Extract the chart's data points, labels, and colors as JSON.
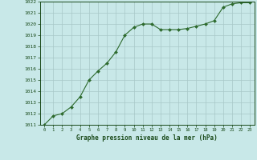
{
  "x": [
    0,
    1,
    2,
    3,
    4,
    5,
    6,
    7,
    8,
    9,
    10,
    11,
    12,
    13,
    14,
    15,
    16,
    17,
    18,
    19,
    20,
    21,
    22,
    23
  ],
  "y": [
    1011.0,
    1011.8,
    1012.0,
    1012.6,
    1013.5,
    1015.0,
    1015.8,
    1016.5,
    1017.5,
    1019.0,
    1019.7,
    1020.0,
    1020.0,
    1019.5,
    1019.5,
    1019.5,
    1019.6,
    1019.8,
    1020.0,
    1020.3,
    1021.5,
    1021.8,
    1021.9,
    1021.9
  ],
  "ylim": [
    1011,
    1022
  ],
  "yticks": [
    1011,
    1012,
    1013,
    1014,
    1015,
    1016,
    1017,
    1018,
    1019,
    1020,
    1021,
    1022
  ],
  "xticks": [
    0,
    1,
    2,
    3,
    4,
    5,
    6,
    7,
    8,
    9,
    10,
    11,
    12,
    13,
    14,
    15,
    16,
    17,
    18,
    19,
    20,
    21,
    22,
    23
  ],
  "line_color": "#2d6a2d",
  "marker_color": "#2d6a2d",
  "bg_color": "#c8e8e8",
  "grid_color": "#a8c8c8",
  "xlabel": "Graphe pression niveau de la mer (hPa)",
  "xlabel_color": "#1a4a1a",
  "tick_color": "#1a4a1a"
}
